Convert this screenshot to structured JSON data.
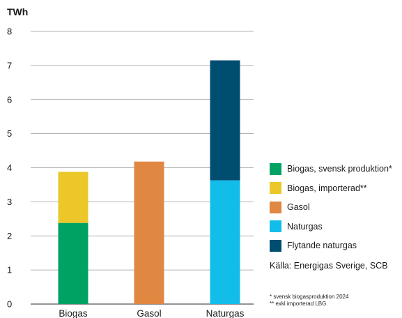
{
  "chart_data": {
    "type": "bar",
    "stacked": true,
    "unit_label": "TWh",
    "categories": [
      "Biogas",
      "Gasol",
      "Naturgas"
    ],
    "ylim": [
      0,
      8
    ],
    "yticks": [
      "0",
      "1",
      "2",
      "3",
      "4",
      "5",
      "6",
      "7",
      "8"
    ],
    "grid": true,
    "legend_position": "right",
    "series": [
      {
        "name": "Biogas, svensk produktion*",
        "color": "#00a264",
        "values": [
          2.38,
          0,
          0
        ]
      },
      {
        "name": "Biogas, importerad**",
        "color": "#ebc72a",
        "values": [
          1.5,
          0,
          0
        ]
      },
      {
        "name": "Gasol",
        "color": "#e08742",
        "values": [
          0,
          4.18,
          0
        ]
      },
      {
        "name": "Naturgas",
        "color": "#13bdea",
        "values": [
          0,
          0,
          3.63
        ]
      },
      {
        "name": "Flytande naturgas",
        "color": "#004d72",
        "values": [
          0,
          0,
          3.52
        ]
      }
    ]
  },
  "source": "Källa: Energigas Sverige, SCB",
  "footnotes": [
    "*  svensk biogasproduktion 2024",
    "** exkl importerad LBG"
  ]
}
